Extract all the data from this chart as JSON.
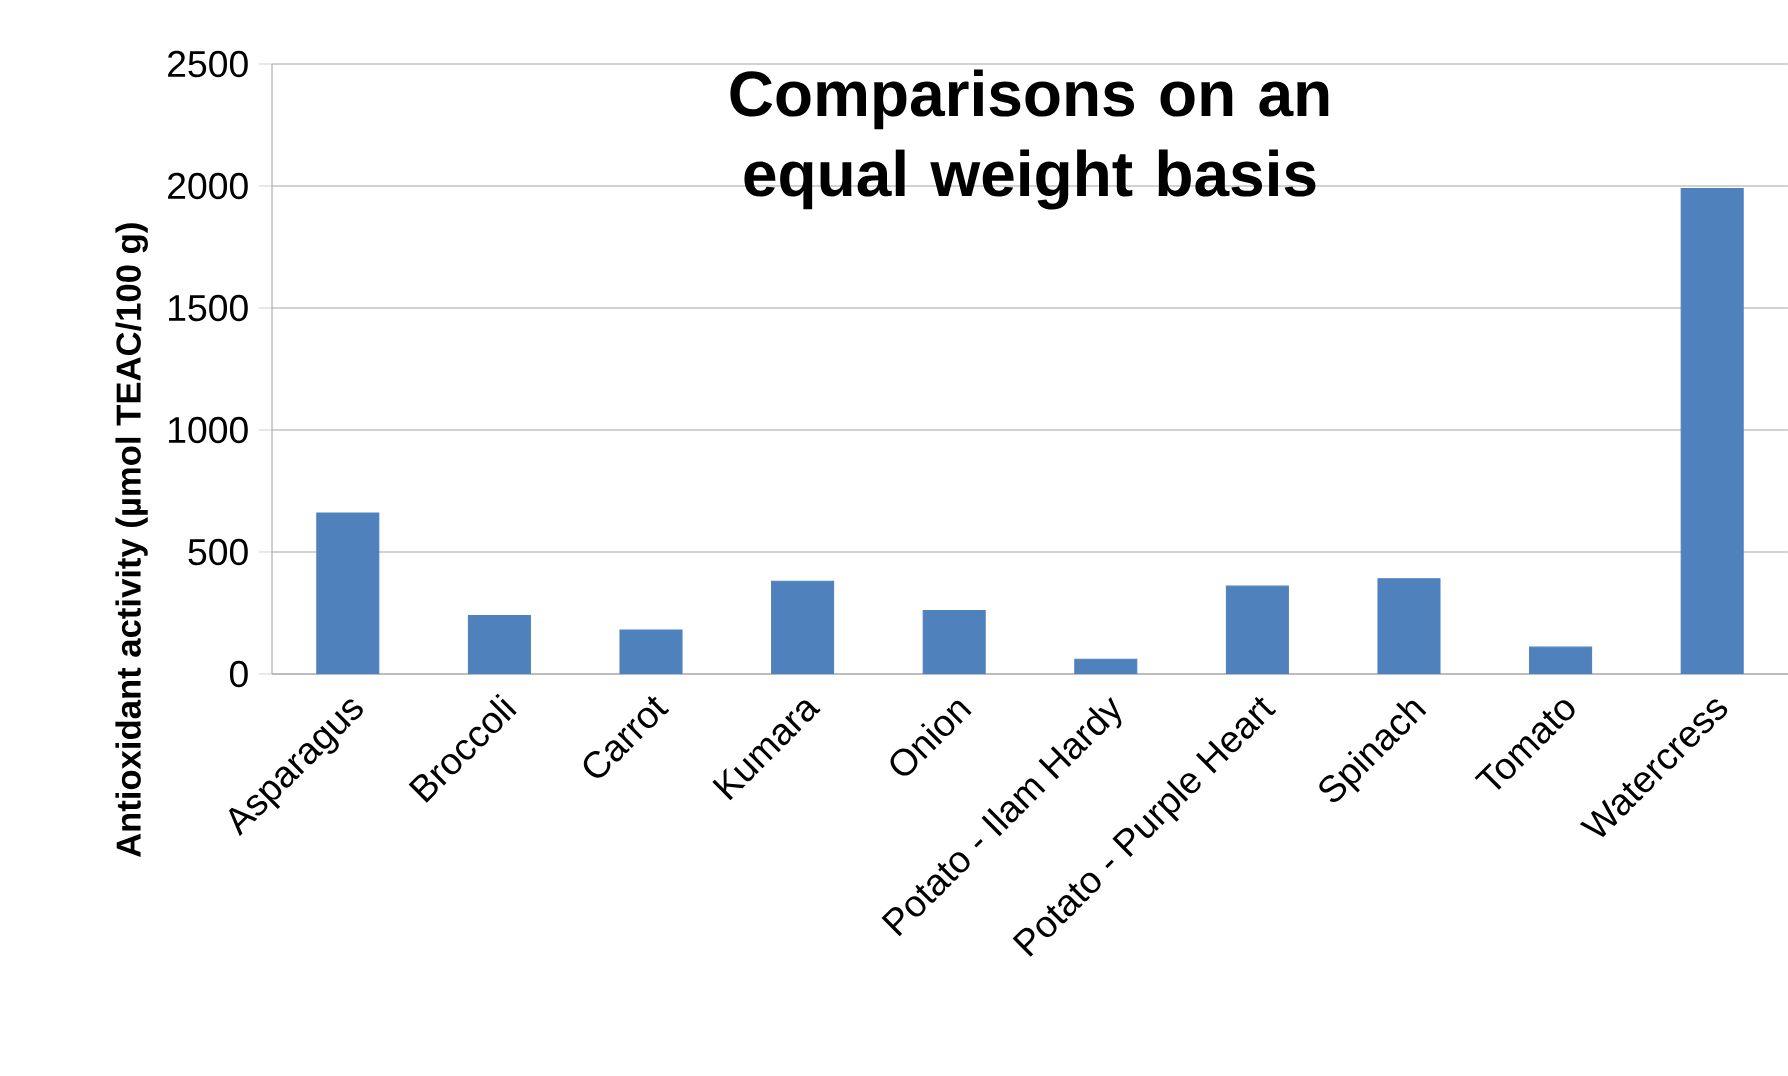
{
  "chart_data": {
    "type": "bar",
    "title": "Comparisons on an equal weight basis",
    "ylabel": "Antioxidant activity (µmol TEAC/100 g)",
    "categories": [
      "Asparagus",
      "Broccoli",
      "Carrot",
      "Kumara",
      "Onion",
      "Potato - Ilam Hardy",
      "Potato - Purple Heart",
      "Spinach",
      "Tomato",
      "Watercress"
    ],
    "values": [
      660,
      240,
      180,
      380,
      260,
      60,
      360,
      390,
      110,
      1990
    ],
    "color": "#4f81bd",
    "ylim": [
      0,
      2500
    ],
    "yticks": [
      0,
      500,
      1000,
      1500,
      2000,
      2500
    ],
    "grid": "y"
  }
}
